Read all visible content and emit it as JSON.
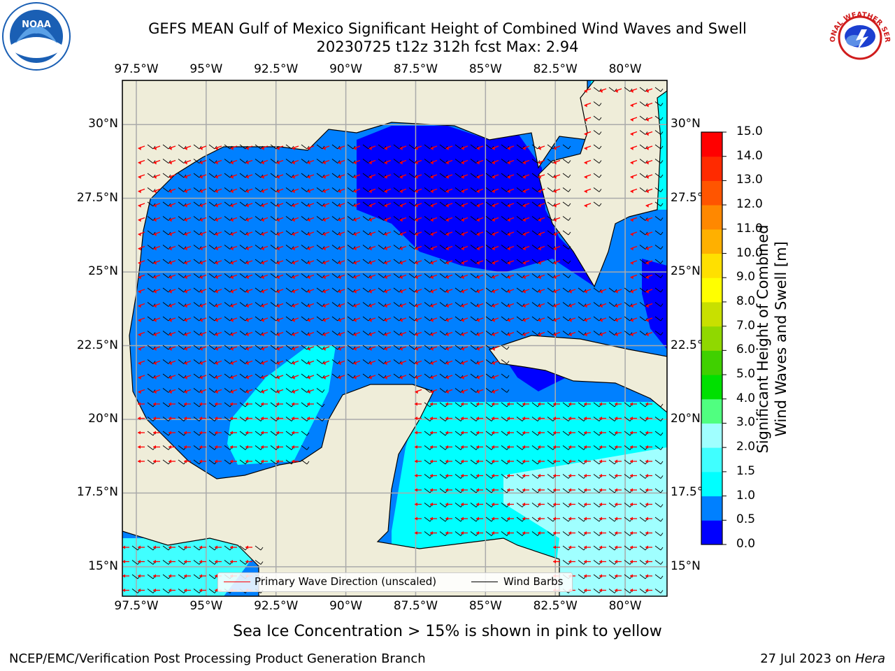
{
  "header": {
    "title_line1": "GEFS MEAN Gulf of Mexico Significant Height of Combined Wind Waves and Swell",
    "title_line2": "20230725 t12z 312h fcst   Max: 2.94"
  },
  "logos": {
    "left": {
      "name": "NOAA",
      "ring_text": "NATIONAL OCEANIC AND ATMOSPHERIC ADMINISTRATION · U.S. DEPARTMENT OF COMMERCE",
      "color": "#1a5fb4"
    },
    "right": {
      "name": "NATIONAL WEATHER SERVICE",
      "color": "#d01c1c"
    }
  },
  "map": {
    "lon_labels": [
      "97.5°W",
      "95°W",
      "92.5°W",
      "90°W",
      "87.5°W",
      "85°W",
      "82.5°W",
      "80°W"
    ],
    "lat_labels": [
      "30°N",
      "27.5°N",
      "25°N",
      "22.5°N",
      "20°N",
      "17.5°N",
      "15°N"
    ],
    "lon_range": [
      -98,
      -78.5
    ],
    "lat_range": [
      14,
      31.5
    ],
    "land_color": "#efedd9",
    "legend": {
      "primary_wave": "Primary Wave Direction (unscaled)",
      "wind_barbs": "Wind Barbs",
      "primary_wave_color": "#ff0000",
      "wind_barbs_color": "#000000"
    }
  },
  "colorbar": {
    "label_line1": "Significant Height of Combined",
    "label_line2": "Wind Waves and Swell [m]",
    "ticks": [
      "0.0",
      "0.5",
      "1.0",
      "1.5",
      "2.0",
      "3.0",
      "4.0",
      "5.0",
      "6.0",
      "7.0",
      "8.0",
      "9.0",
      "10.0",
      "11.0",
      "12.0",
      "13.0",
      "14.0",
      "15.0"
    ],
    "colors": [
      "#0000ff",
      "#0080ff",
      "#00ffff",
      "#40ffff",
      "#a0ffff",
      "#50ff80",
      "#00e000",
      "#40d000",
      "#90d800",
      "#c8e000",
      "#ffff00",
      "#ffe000",
      "#ffb000",
      "#ff8800",
      "#ff5500",
      "#ff2a00",
      "#ff0000"
    ]
  },
  "footer": {
    "sea_ice_note": "Sea Ice Concentration > 15% is shown in pink to yellow",
    "branch": "NCEP/EMC/Verification Post Processing Product Generation Branch",
    "date": "27 Jul 2023 on ",
    "host": "Hera"
  }
}
